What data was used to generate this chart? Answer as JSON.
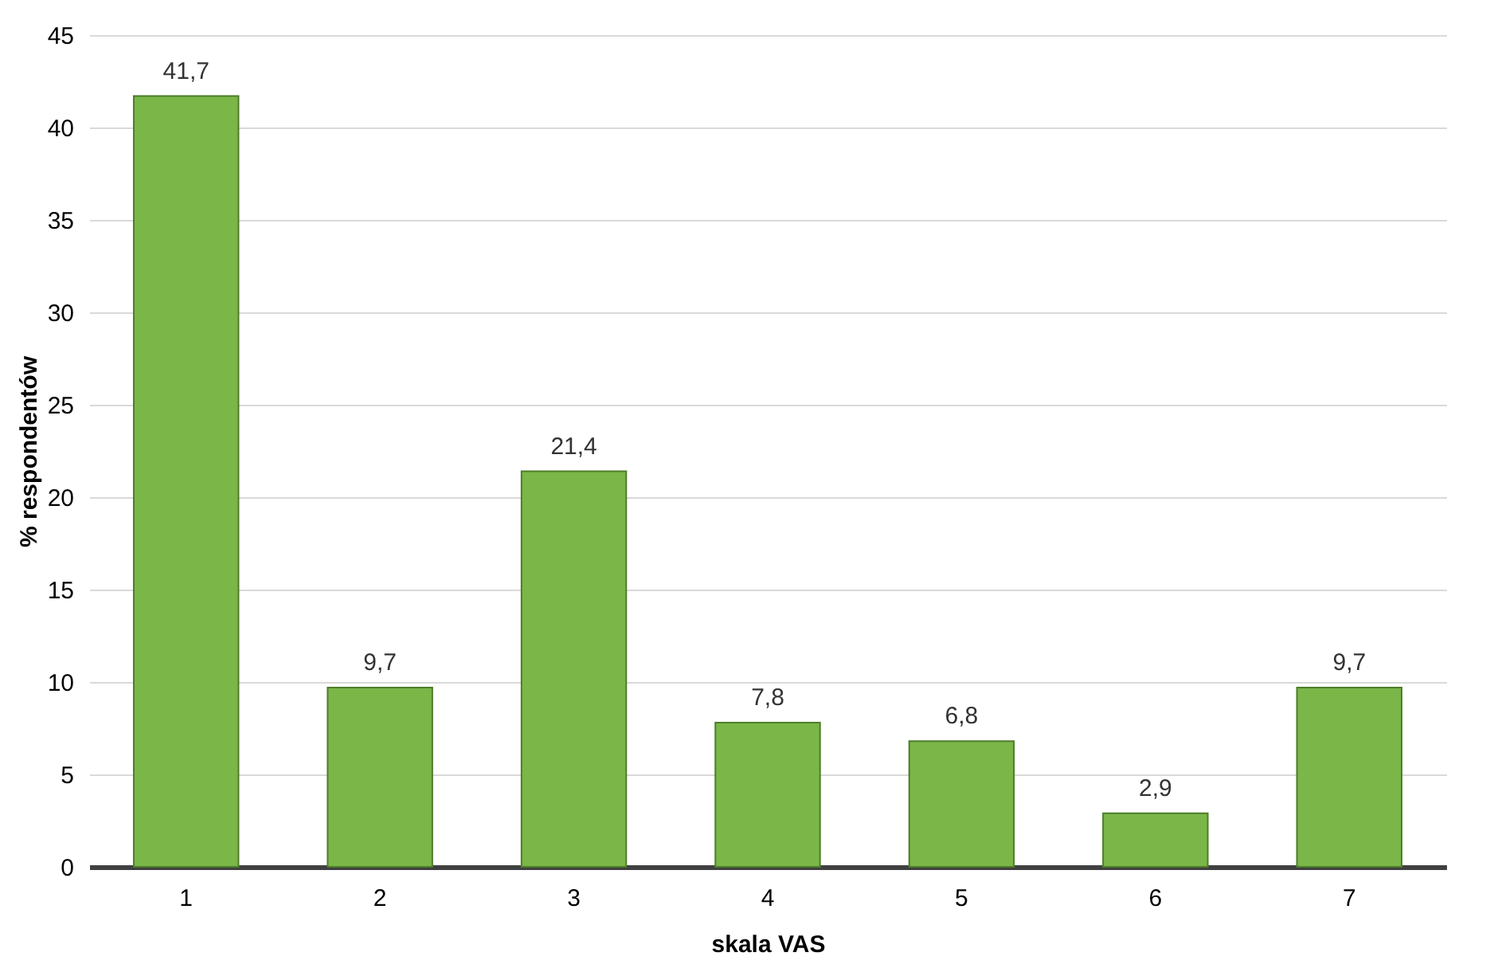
{
  "chart_data": {
    "type": "bar",
    "xlabel": "skala VAS",
    "ylabel": "% respondentów",
    "categories": [
      "1",
      "2",
      "3",
      "4",
      "5",
      "6",
      "7"
    ],
    "values": [
      41.7,
      9.7,
      21.4,
      7.8,
      6.8,
      2.9,
      9.7
    ],
    "value_labels": [
      "41,7",
      "9,7",
      "21,4",
      "7,8",
      "6,8",
      "2,9",
      "9,7"
    ],
    "color": "#7ab648",
    "ylim": [
      0,
      45
    ],
    "yticks": [
      0,
      5,
      10,
      15,
      20,
      25,
      30,
      35,
      40,
      45
    ],
    "grid": "y"
  }
}
